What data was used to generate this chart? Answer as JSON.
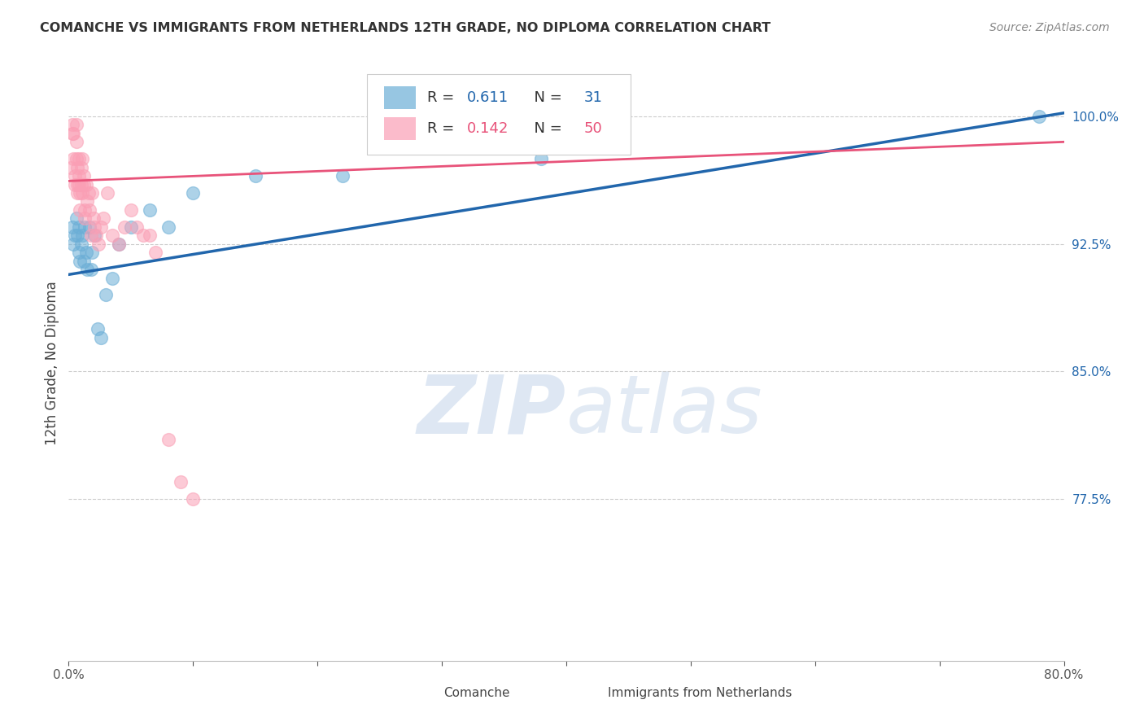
{
  "title": "COMANCHE VS IMMIGRANTS FROM NETHERLANDS 12TH GRADE, NO DIPLOMA CORRELATION CHART",
  "source": "Source: ZipAtlas.com",
  "ylabel": "12th Grade, No Diploma",
  "xlim": [
    0.0,
    0.8
  ],
  "ylim": [
    0.68,
    1.03
  ],
  "yticks": [
    0.775,
    0.85,
    0.925,
    1.0
  ],
  "ytick_labels": [
    "77.5%",
    "85.0%",
    "92.5%",
    "100.0%"
  ],
  "xticks": [
    0.0,
    0.1,
    0.2,
    0.3,
    0.4,
    0.5,
    0.6,
    0.7,
    0.8
  ],
  "xtick_labels": [
    "0.0%",
    "",
    "",
    "",
    "",
    "",
    "",
    "",
    "80.0%"
  ],
  "blue_color": "#6baed6",
  "pink_color": "#fa9fb5",
  "blue_line_color": "#2166ac",
  "pink_line_color": "#e8537a",
  "watermark_zip": "ZIP",
  "watermark_atlas": "atlas",
  "legend_r_blue": "0.611",
  "legend_n_blue": "31",
  "legend_r_pink": "0.142",
  "legend_n_pink": "50",
  "blue_x": [
    0.003,
    0.004,
    0.005,
    0.006,
    0.007,
    0.008,
    0.008,
    0.009,
    0.01,
    0.011,
    0.012,
    0.013,
    0.014,
    0.015,
    0.017,
    0.018,
    0.019,
    0.021,
    0.023,
    0.026,
    0.03,
    0.035,
    0.04,
    0.05,
    0.065,
    0.08,
    0.1,
    0.15,
    0.22,
    0.38,
    0.78
  ],
  "blue_y": [
    0.935,
    0.925,
    0.93,
    0.94,
    0.93,
    0.935,
    0.92,
    0.915,
    0.925,
    0.93,
    0.915,
    0.935,
    0.92,
    0.91,
    0.935,
    0.91,
    0.92,
    0.93,
    0.875,
    0.87,
    0.895,
    0.905,
    0.925,
    0.935,
    0.945,
    0.935,
    0.955,
    0.965,
    0.965,
    0.975,
    1.0
  ],
  "pink_x": [
    0.002,
    0.003,
    0.003,
    0.004,
    0.004,
    0.005,
    0.005,
    0.006,
    0.006,
    0.006,
    0.007,
    0.007,
    0.007,
    0.008,
    0.008,
    0.008,
    0.009,
    0.009,
    0.01,
    0.01,
    0.011,
    0.011,
    0.012,
    0.012,
    0.013,
    0.013,
    0.014,
    0.015,
    0.016,
    0.017,
    0.018,
    0.019,
    0.02,
    0.021,
    0.022,
    0.024,
    0.026,
    0.028,
    0.031,
    0.035,
    0.04,
    0.045,
    0.05,
    0.055,
    0.06,
    0.065,
    0.07,
    0.08,
    0.09,
    0.1
  ],
  "pink_y": [
    0.97,
    0.995,
    0.99,
    0.99,
    0.975,
    0.965,
    0.96,
    0.995,
    0.985,
    0.975,
    0.97,
    0.96,
    0.955,
    0.975,
    0.965,
    0.96,
    0.955,
    0.945,
    0.97,
    0.96,
    0.955,
    0.975,
    0.965,
    0.96,
    0.945,
    0.94,
    0.96,
    0.95,
    0.955,
    0.945,
    0.93,
    0.955,
    0.94,
    0.935,
    0.93,
    0.925,
    0.935,
    0.94,
    0.955,
    0.93,
    0.925,
    0.935,
    0.945,
    0.935,
    0.93,
    0.93,
    0.92,
    0.81,
    0.785,
    0.775
  ],
  "blue_line_x": [
    0.0,
    0.8
  ],
  "blue_line_y": [
    0.907,
    1.002
  ],
  "pink_line_x": [
    0.0,
    0.8
  ],
  "pink_line_y": [
    0.962,
    0.985
  ]
}
